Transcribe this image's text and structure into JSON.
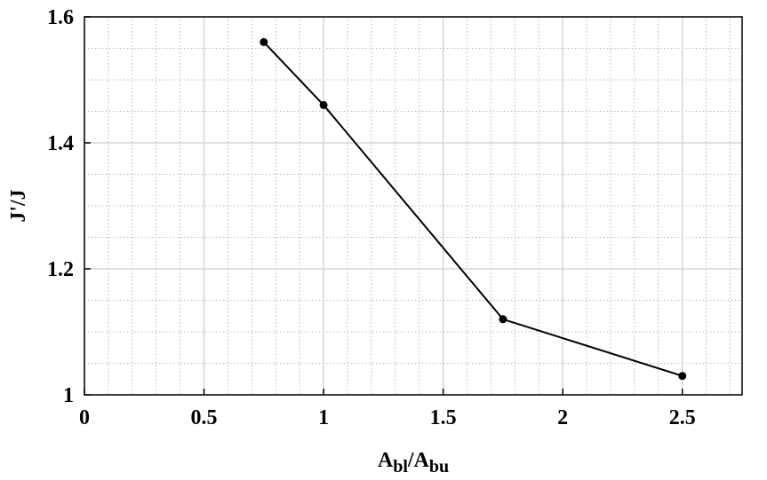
{
  "chart_data": {
    "type": "line",
    "xlabel": [
      "A",
      "bl",
      "/A",
      "bu"
    ],
    "ylabel": "J'/J",
    "x": [
      0.75,
      1.0,
      1.75,
      2.5
    ],
    "series": [
      {
        "color": "#000000",
        "values": [
          1.56,
          1.46,
          1.12,
          1.03
        ]
      }
    ],
    "xlim": [
      0,
      2.75
    ],
    "xticks": [
      0,
      0.5,
      1,
      1.5,
      2,
      2.5
    ],
    "ylim": [
      1,
      1.6
    ],
    "yticks": [
      1,
      1.2,
      1.4,
      1.6
    ],
    "grid": true,
    "minor_grid": true,
    "markers": true
  }
}
